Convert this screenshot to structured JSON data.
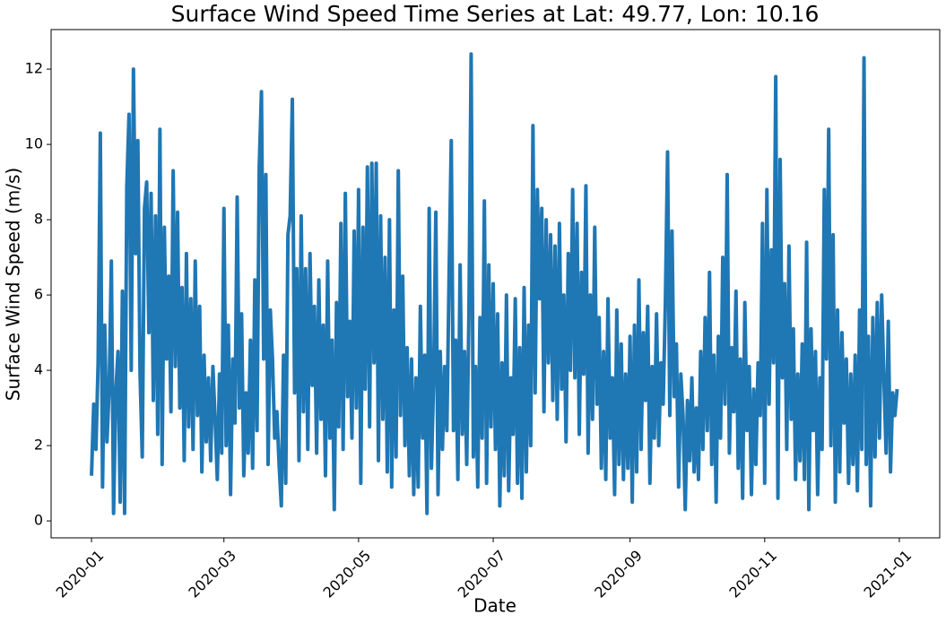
{
  "chart_data": {
    "type": "line",
    "title": "Surface Wind Speed Time Series at Lat: 49.77, Lon: 10.16",
    "x_label": "Date",
    "y_label": "Surface Wind Speed (m/s)",
    "color": "#1f77b4",
    "xlim": [
      -18.3,
      384.3
    ],
    "ylim": [
      -0.45,
      13.05
    ],
    "xticks": [
      {
        "value": 0,
        "label": "2020-01"
      },
      {
        "value": 60,
        "label": "2020-03"
      },
      {
        "value": 121,
        "label": "2020-05"
      },
      {
        "value": 182,
        "label": "2020-07"
      },
      {
        "value": 244,
        "label": "2020-09"
      },
      {
        "value": 305,
        "label": "2020-11"
      },
      {
        "value": 366,
        "label": "2021-01"
      }
    ],
    "yticks": [
      0,
      2,
      4,
      6,
      8,
      10,
      12
    ],
    "x": [
      0,
      1,
      2,
      3,
      4,
      5,
      6,
      7,
      8,
      9,
      10,
      11,
      12,
      13,
      14,
      15,
      16,
      17,
      18,
      19,
      20,
      21,
      22,
      23,
      24,
      25,
      26,
      27,
      28,
      29,
      30,
      31,
      32,
      33,
      34,
      35,
      36,
      37,
      38,
      39,
      40,
      41,
      42,
      43,
      44,
      45,
      46,
      47,
      48,
      49,
      50,
      51,
      52,
      53,
      54,
      55,
      56,
      57,
      58,
      59,
      60,
      61,
      62,
      63,
      64,
      65,
      66,
      67,
      68,
      69,
      70,
      71,
      72,
      73,
      74,
      75,
      76,
      77,
      78,
      79,
      80,
      81,
      82,
      83,
      84,
      85,
      86,
      87,
      88,
      89,
      90,
      91,
      92,
      93,
      94,
      95,
      96,
      97,
      98,
      99,
      100,
      101,
      102,
      103,
      104,
      105,
      106,
      107,
      108,
      109,
      110,
      111,
      112,
      113,
      114,
      115,
      116,
      117,
      118,
      119,
      120,
      121,
      122,
      123,
      124,
      125,
      126,
      127,
      128,
      129,
      130,
      131,
      132,
      133,
      134,
      135,
      136,
      137,
      138,
      139,
      140,
      141,
      142,
      143,
      144,
      145,
      146,
      147,
      148,
      149,
      150,
      151,
      152,
      153,
      154,
      155,
      156,
      157,
      158,
      159,
      160,
      161,
      162,
      163,
      164,
      165,
      166,
      167,
      168,
      169,
      170,
      171,
      172,
      173,
      174,
      175,
      176,
      177,
      178,
      179,
      180,
      181,
      182,
      183,
      184,
      185,
      186,
      187,
      188,
      189,
      190,
      191,
      192,
      193,
      194,
      195,
      196,
      197,
      198,
      199,
      200,
      201,
      202,
      203,
      204,
      205,
      206,
      207,
      208,
      209,
      210,
      211,
      212,
      213,
      214,
      215,
      216,
      217,
      218,
      219,
      220,
      221,
      222,
      223,
      224,
      225,
      226,
      227,
      228,
      229,
      230,
      231,
      232,
      233,
      234,
      235,
      236,
      237,
      238,
      239,
      240,
      241,
      242,
      243,
      244,
      245,
      246,
      247,
      248,
      249,
      250,
      251,
      252,
      253,
      254,
      255,
      256,
      257,
      258,
      259,
      260,
      261,
      262,
      263,
      264,
      265,
      266,
      267,
      268,
      269,
      270,
      271,
      272,
      273,
      274,
      275,
      276,
      277,
      278,
      279,
      280,
      281,
      282,
      283,
      284,
      285,
      286,
      287,
      288,
      289,
      290,
      291,
      292,
      293,
      294,
      295,
      296,
      297,
      298,
      299,
      300,
      301,
      302,
      303,
      304,
      305,
      306,
      307,
      308,
      309,
      310,
      311,
      312,
      313,
      314,
      315,
      316,
      317,
      318,
      319,
      320,
      321,
      322,
      323,
      324,
      325,
      326,
      327,
      328,
      329,
      330,
      331,
      332,
      333,
      334,
      335,
      336,
      337,
      338,
      339,
      340,
      341,
      342,
      343,
      344,
      345,
      346,
      347,
      348,
      349,
      350,
      351,
      352,
      353,
      354,
      355,
      356,
      357,
      358,
      359,
      360,
      361,
      362,
      363,
      364,
      365
    ],
    "values": [
      1.2,
      3.1,
      1.9,
      4.2,
      10.3,
      0.9,
      5.2,
      2.1,
      3.5,
      6.9,
      0.2,
      3.4,
      4.5,
      0.5,
      6.1,
      0.2,
      8.9,
      10.8,
      4.0,
      12.0,
      7.1,
      10.1,
      3.9,
      1.7,
      8.3,
      9.0,
      5.0,
      8.7,
      3.2,
      8.1,
      2.3,
      10.4,
      1.5,
      7.8,
      4.3,
      6.5,
      2.9,
      9.3,
      4.1,
      8.2,
      3.0,
      6.2,
      1.6,
      7.1,
      2.5,
      5.9,
      1.9,
      6.9,
      2.8,
      5.7,
      1.3,
      4.4,
      2.1,
      3.8,
      1.6,
      4.1,
      2.7,
      1.1,
      3.9,
      1.8,
      8.3,
      2.0,
      5.2,
      0.7,
      4.3,
      2.6,
      8.6,
      3.0,
      5.5,
      1.2,
      3.4,
      1.8,
      4.8,
      1.4,
      6.4,
      2.4,
      9.4,
      11.4,
      4.3,
      9.2,
      1.5,
      5.6,
      4.3,
      2.2,
      2.9,
      1.5,
      0.4,
      4.4,
      1.0,
      7.6,
      8.1,
      11.2,
      3.4,
      6.7,
      1.6,
      8.1,
      2.9,
      6.7,
      1.9,
      7.1,
      3.6,
      5.7,
      1.8,
      6.4,
      2.7,
      5.2,
      1.2,
      6.9,
      2.2,
      4.8,
      0.3,
      5.8,
      2.5,
      7.9,
      1.9,
      8.7,
      3.3,
      5.3,
      2.2,
      7.7,
      3.0,
      8.8,
      1.0,
      7.8,
      3.5,
      9.4,
      2.5,
      9.5,
      4.2,
      9.5,
      1.6,
      8.1,
      2.7,
      7.0,
      1.3,
      8.0,
      0.9,
      5.6,
      1.7,
      9.3,
      2.8,
      6.5,
      2.0,
      4.6,
      1.2,
      4.3,
      0.7,
      3.8,
      0.9,
      5.7,
      2.2,
      4.4,
      0.2,
      8.3,
      1.4,
      3.7,
      8.2,
      0.7,
      4.5,
      1.9,
      4.1,
      2.4,
      6.5,
      10.1,
      2.4,
      4.8,
      1.1,
      6.8,
      2.3,
      4.5,
      1.5,
      5.5,
      12.4,
      1.7,
      4.1,
      0.9,
      5.4,
      2.2,
      8.5,
      1.0,
      6.8,
      2.5,
      6.3,
      1.9,
      5.5,
      0.4,
      4.2,
      1.2,
      6.0,
      0.8,
      3.8,
      2.3,
      5.9,
      1.0,
      4.6,
      0.6,
      6.2,
      1.3,
      5.2,
      2.0,
      10.5,
      3.4,
      8.8,
      5.9,
      8.3,
      2.9,
      8.0,
      4.2,
      7.6,
      3.2,
      7.3,
      2.7,
      7.9,
      3.5,
      6.0,
      2.1,
      7.1,
      4.0,
      8.8,
      3.8,
      7.9,
      2.3,
      6.6,
      3.9,
      8.9,
      1.8,
      6.0,
      2.7,
      7.8,
      3.1,
      5.4,
      1.4,
      4.5,
      1.1,
      5.9,
      2.2,
      3.8,
      0.7,
      5.6,
      1.5,
      4.7,
      1.1,
      3.9,
      1.4,
      4.9,
      0.5,
      5.2,
      1.3,
      6.4,
      1.9,
      5.0,
      3.2,
      5.7,
      1.0,
      4.1,
      2.2,
      5.5,
      2.0,
      4.2,
      3.1,
      5.8,
      9.8,
      2.8,
      7.7,
      3.3,
      4.7,
      0.9,
      3.9,
      2.8,
      0.3,
      3.2,
      1.6,
      3.8,
      1.3,
      3.0,
      1.1,
      4.5,
      1.9,
      5.4,
      2.4,
      6.6,
      1.5,
      4.4,
      0.5,
      4.9,
      2.2,
      7.0,
      3.1,
      9.2,
      1.8,
      4.6,
      2.9,
      6.1,
      1.4,
      4.3,
      0.6,
      5.8,
      2.4,
      4.1,
      0.7,
      3.5,
      1.5,
      4.2,
      2.8,
      7.9,
      1.0,
      8.8,
      3.1,
      7.2,
      4.2,
      11.8,
      0.6,
      9.6,
      3.8,
      6.3,
      1.9,
      7.3,
      2.7,
      5.1,
      1.1,
      3.9,
      1.6,
      4.7,
      1.1,
      7.4,
      0.3,
      5.1,
      2.4,
      4.5,
      0.7,
      3.8,
      1.9,
      8.8,
      4.3,
      10.4,
      2.0,
      7.6,
      0.5,
      5.6,
      1.3,
      5.0,
      2.6,
      4.3,
      1.0,
      3.9,
      1.5,
      4.4,
      0.8,
      5.6,
      1.9,
      12.3,
      1.5,
      4.9,
      0.4,
      5.4,
      1.7,
      5.8,
      2.2,
      6.0,
      3.8,
      1.8,
      5.3,
      1.3,
      3.4,
      2.8,
      3.5
    ]
  }
}
